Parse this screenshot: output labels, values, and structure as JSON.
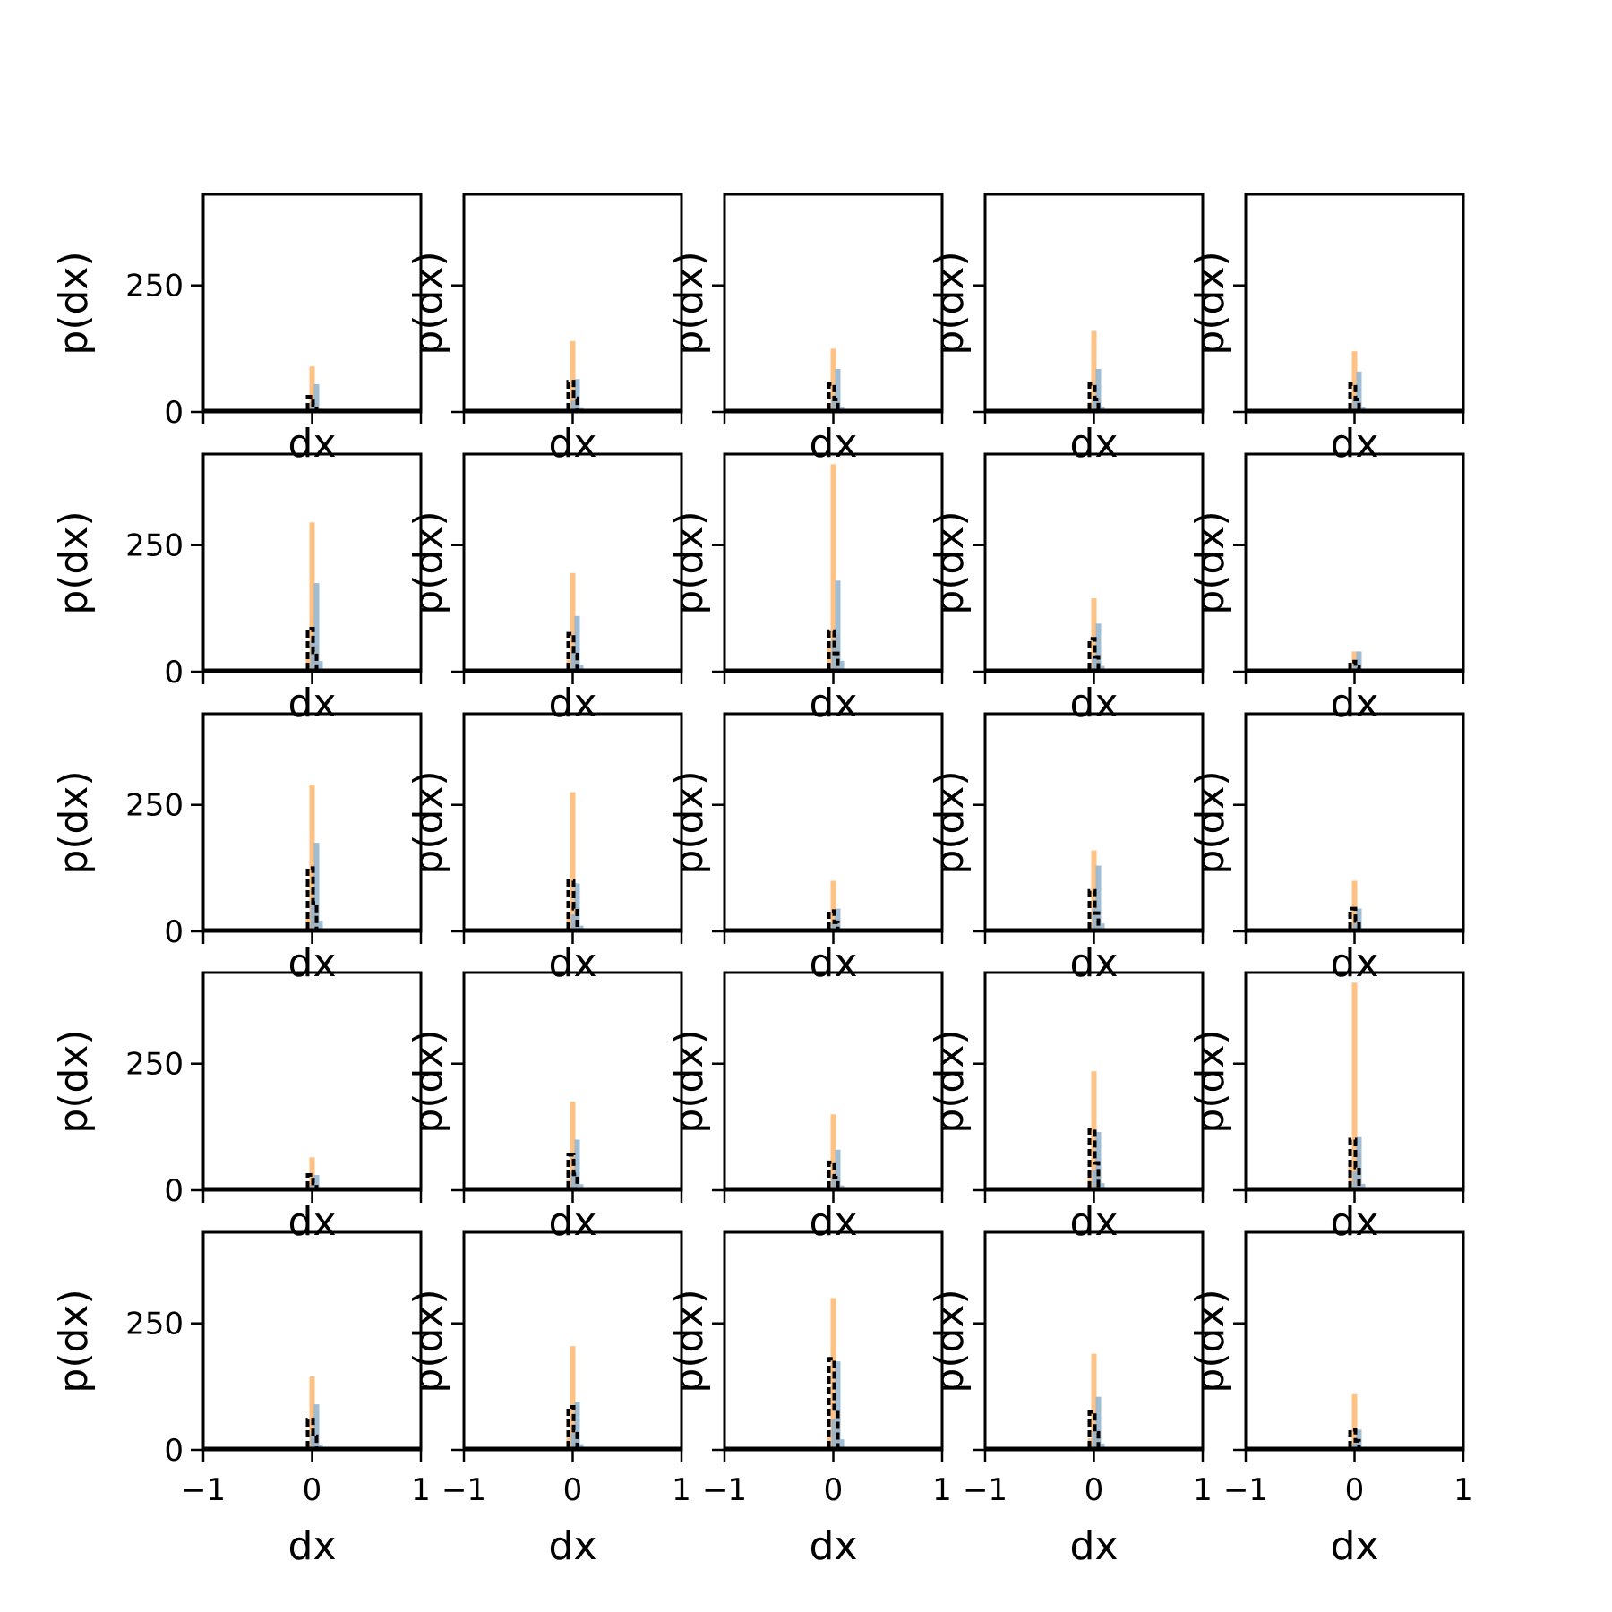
{
  "chart_data": {
    "type": "histogram-grid",
    "rows": 5,
    "cols": 5,
    "xlabel": "dx",
    "ylabel": "p(dx)",
    "xlim": [
      -1,
      1
    ],
    "ylim": [
      0,
      430
    ],
    "xticks": [
      -1,
      0,
      1
    ],
    "xtick_labels": [
      "−1",
      "0",
      "1"
    ],
    "yticks": [
      0,
      250
    ],
    "ytick_labels": [
      "0",
      "250"
    ],
    "grid": false,
    "legend": "none",
    "series_colors": {
      "orange": "#ffbb78",
      "blue": "#8fb2cf",
      "black": "#000000"
    },
    "panels": [
      {
        "row": 0,
        "col": 0,
        "orange": 90,
        "blue": 55,
        "black": 30
      },
      {
        "row": 0,
        "col": 1,
        "orange": 140,
        "blue": 65,
        "black": 60
      },
      {
        "row": 0,
        "col": 2,
        "orange": 125,
        "blue": 85,
        "black": 55
      },
      {
        "row": 0,
        "col": 3,
        "orange": 160,
        "blue": 85,
        "black": 55
      },
      {
        "row": 0,
        "col": 4,
        "orange": 120,
        "blue": 80,
        "black": 55
      },
      {
        "row": 1,
        "col": 0,
        "orange": 295,
        "blue": 175,
        "black": 85
      },
      {
        "row": 1,
        "col": 1,
        "orange": 195,
        "blue": 110,
        "black": 75
      },
      {
        "row": 1,
        "col": 2,
        "orange": 410,
        "blue": 180,
        "black": 80
      },
      {
        "row": 1,
        "col": 3,
        "orange": 145,
        "blue": 95,
        "black": 65
      },
      {
        "row": 1,
        "col": 4,
        "orange": 40,
        "blue": 40,
        "black": 20
      },
      {
        "row": 2,
        "col": 0,
        "orange": 290,
        "blue": 175,
        "black": 125
      },
      {
        "row": 2,
        "col": 1,
        "orange": 275,
        "blue": 95,
        "black": 100
      },
      {
        "row": 2,
        "col": 2,
        "orange": 100,
        "blue": 45,
        "black": 40
      },
      {
        "row": 2,
        "col": 3,
        "orange": 160,
        "blue": 130,
        "black": 80
      },
      {
        "row": 2,
        "col": 4,
        "orange": 100,
        "blue": 45,
        "black": 45
      },
      {
        "row": 3,
        "col": 0,
        "orange": 65,
        "blue": 30,
        "black": 30
      },
      {
        "row": 3,
        "col": 1,
        "orange": 175,
        "blue": 100,
        "black": 70
      },
      {
        "row": 3,
        "col": 2,
        "orange": 150,
        "blue": 80,
        "black": 55
      },
      {
        "row": 3,
        "col": 3,
        "orange": 235,
        "blue": 115,
        "black": 120
      },
      {
        "row": 3,
        "col": 4,
        "orange": 410,
        "blue": 105,
        "black": 100
      },
      {
        "row": 4,
        "col": 0,
        "orange": 145,
        "blue": 90,
        "black": 60
      },
      {
        "row": 4,
        "col": 1,
        "orange": 205,
        "blue": 95,
        "black": 85
      },
      {
        "row": 4,
        "col": 2,
        "orange": 300,
        "blue": 175,
        "black": 180
      },
      {
        "row": 4,
        "col": 3,
        "orange": 190,
        "blue": 105,
        "black": 75
      },
      {
        "row": 4,
        "col": 4,
        "orange": 110,
        "blue": 40,
        "black": 40
      }
    ]
  }
}
